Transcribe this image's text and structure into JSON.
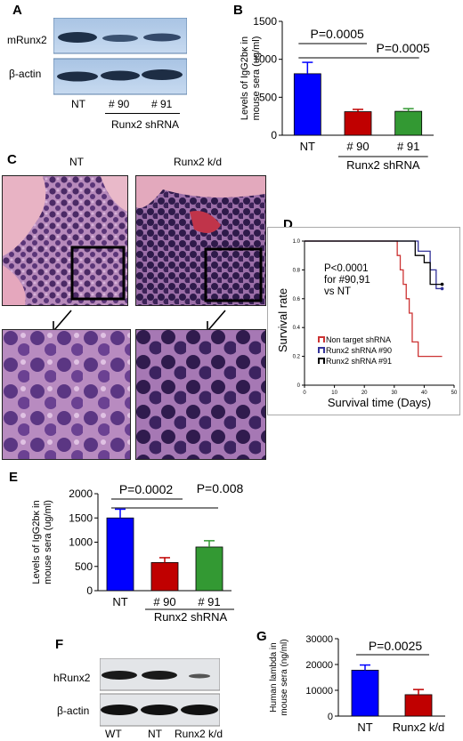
{
  "panels": {
    "A": {
      "label": "A",
      "rows": [
        "mRunx2",
        "β-actin"
      ],
      "lanes": [
        "NT",
        "# 90",
        "# 91"
      ],
      "group": "Runx2 shRNA"
    },
    "B": {
      "label": "B"
    },
    "C": {
      "label": "C",
      "col1": "NT",
      "col2": "Runx2 k/d"
    },
    "D": {
      "label": "D"
    },
    "E": {
      "label": "E"
    },
    "F": {
      "label": "F",
      "rows": [
        "hRunx2",
        "β-actin"
      ],
      "lanes": [
        "WT",
        "NT",
        "Runx2 k/d"
      ]
    },
    "G": {
      "label": "G"
    }
  },
  "chart_data": [
    {
      "id": "B",
      "type": "bar",
      "categories": [
        "NT",
        "# 90",
        "# 91"
      ],
      "group_label": "Runx2 shRNA",
      "values": [
        810,
        310,
        315
      ],
      "errors": [
        150,
        30,
        35
      ],
      "colors": [
        "#0000ff",
        "#c00000",
        "#339933"
      ],
      "ylabel": "Levels of IgG2bκ in mouse sera (ug/ml)",
      "ylabel_lines": [
        "Levels of IgG2bκ in",
        "mouse sera (ug/ml)"
      ],
      "ylim": [
        0,
        1500
      ],
      "yticks": [
        "0",
        "500",
        "1000",
        "1500"
      ],
      "annotations": [
        "P=0.0005",
        "P=0.0005"
      ]
    },
    {
      "id": "D",
      "type": "line",
      "xlabel": "Survival time (Days)",
      "ylabel": "Survival rate",
      "xlim": [
        0,
        50
      ],
      "ylim": [
        0,
        1.0
      ],
      "xticks": [
        "0",
        "10",
        "20",
        "30",
        "40",
        "50"
      ],
      "yticks": [
        "0",
        "0.2",
        "0.4",
        "0.6",
        "0.8",
        "1.0"
      ],
      "annotation": [
        "P<0.0001",
        "for #90,91",
        "vs NT"
      ],
      "series": [
        {
          "name": "Non target shRNA",
          "color": "#cc3333",
          "x": [
            0,
            30,
            31,
            32,
            33,
            34,
            35,
            36,
            38,
            46
          ],
          "y": [
            1.0,
            1.0,
            0.9,
            0.8,
            0.7,
            0.6,
            0.5,
            0.3,
            0.2,
            0.2
          ]
        },
        {
          "name": "Runx2 shRNA #90",
          "color": "#333399",
          "x": [
            0,
            30,
            38,
            42,
            44,
            46
          ],
          "y": [
            1.0,
            1.0,
            0.93,
            0.8,
            0.67,
            0.67
          ]
        },
        {
          "name": "Runx2 shRNA #91",
          "color": "#000000",
          "x": [
            0,
            30,
            37,
            40,
            42,
            46
          ],
          "y": [
            1.0,
            1.0,
            0.9,
            0.85,
            0.7,
            0.7
          ]
        }
      ]
    },
    {
      "id": "E",
      "type": "bar",
      "categories": [
        "NT",
        "# 90",
        "# 91"
      ],
      "group_label": "Runx2 shRNA",
      "values": [
        1500,
        580,
        900
      ],
      "errors": [
        180,
        100,
        130
      ],
      "colors": [
        "#0000ff",
        "#c00000",
        "#339933"
      ],
      "ylabel": "Levels of IgG2bκ in mouse sera (ug/ml)",
      "ylabel_lines": [
        "Levels of IgG2bκ in",
        "mouse sera (ug/ml)"
      ],
      "ylim": [
        0,
        2000
      ],
      "yticks": [
        "0",
        "500",
        "1000",
        "1500",
        "2000"
      ],
      "annotations": [
        "P=0.0002",
        "P=0.008"
      ]
    },
    {
      "id": "G",
      "type": "bar",
      "categories": [
        "NT",
        "Runx2 k/d"
      ],
      "values": [
        17800,
        8300
      ],
      "errors": [
        2000,
        2000
      ],
      "colors": [
        "#0000ff",
        "#c00000"
      ],
      "ylabel": "Human lambda in mouse sera (ng/ml)",
      "ylabel_lines": [
        "Human lambda in",
        "mouse sera (ng/ml)"
      ],
      "ylim": [
        0,
        30000
      ],
      "yticks": [
        "0",
        "10000",
        "20000",
        "30000"
      ],
      "annotations": [
        "P=0.0025"
      ]
    }
  ]
}
